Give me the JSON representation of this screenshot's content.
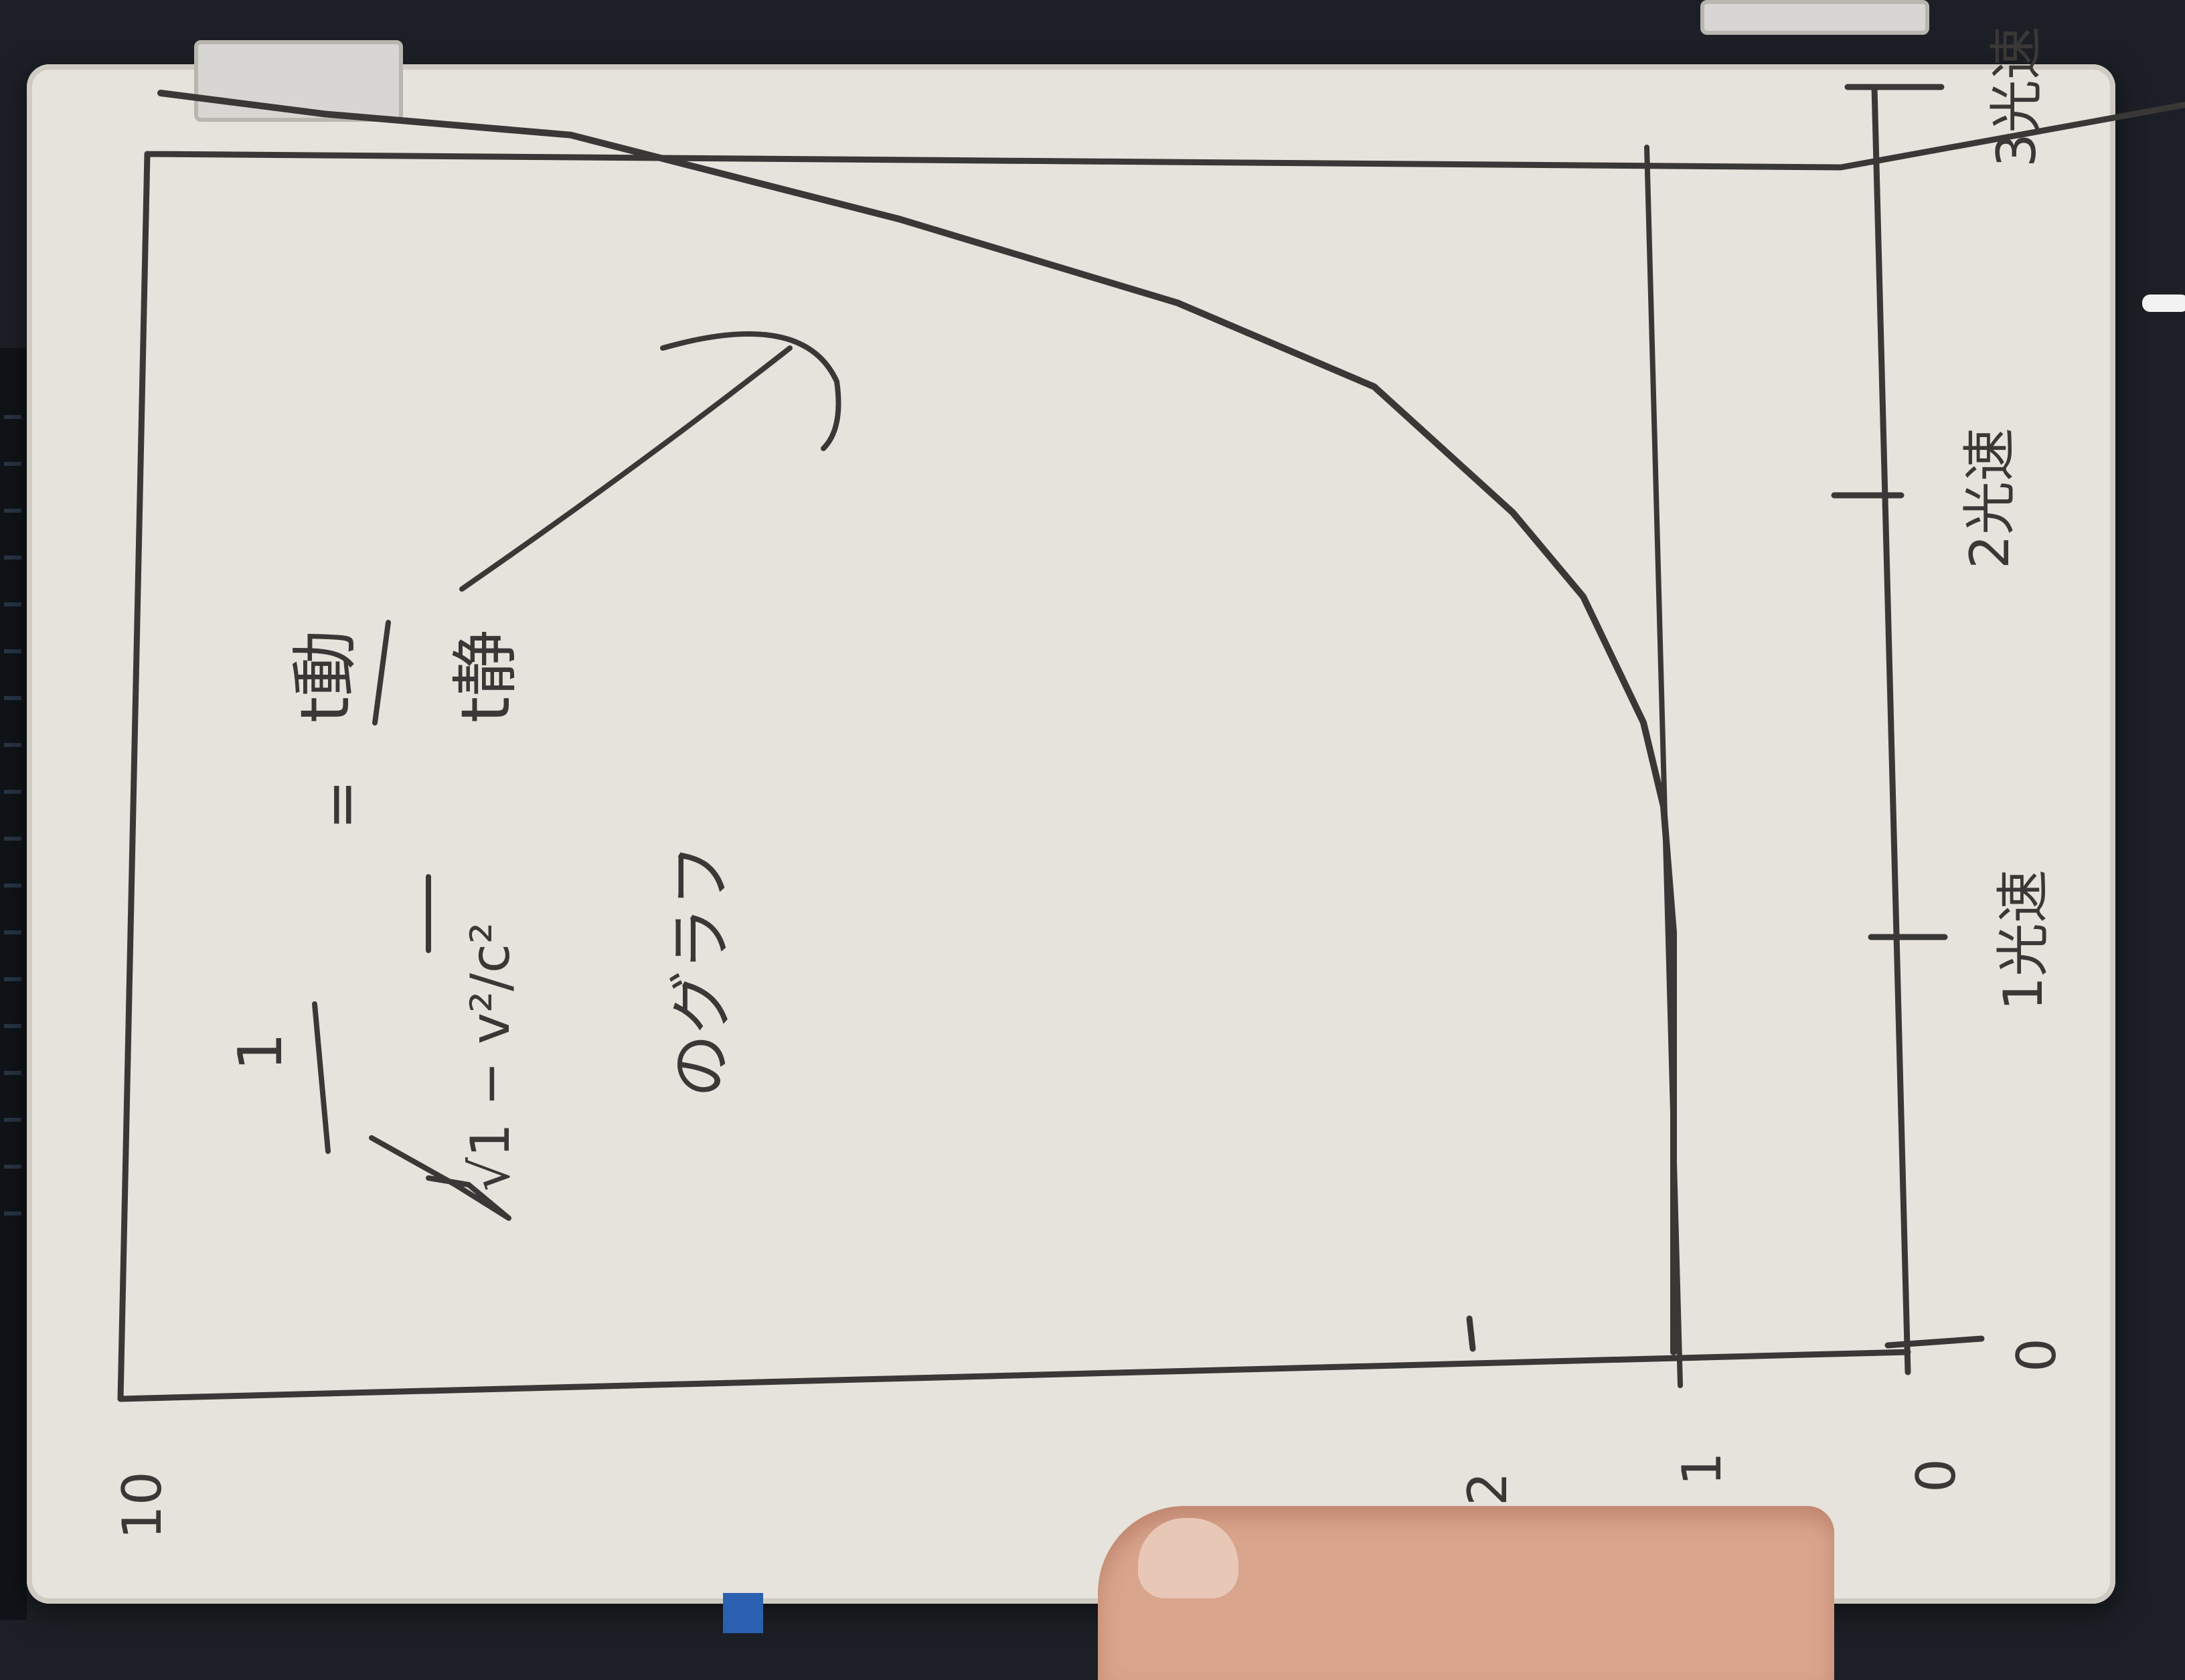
{
  "colors": {
    "ink": "#3a3836",
    "board": "#e6e3dd",
    "background": "#1c2026"
  },
  "chart_data": {
    "type": "line",
    "title": "",
    "x": [
      0,
      1,
      1.3,
      1.5,
      1.8,
      2,
      2.3,
      2.5,
      2.7,
      2.9,
      2.95,
      3
    ],
    "y": [
      1,
      1,
      1.05,
      1.15,
      1.45,
      1.8,
      2.6,
      3.8,
      5.5,
      7.5,
      9,
      10
    ],
    "xticks": [
      "0",
      "1光速",
      "2光速",
      "3光速"
    ],
    "yticks": [
      "0",
      "1",
      "2",
      "10"
    ],
    "x_origin_label": "0",
    "xlabel": "",
    "ylabel": ""
  },
  "annotations": {
    "formula_numerator": "1",
    "formula_denominator": "√1 − v²/c²",
    "equals": "=",
    "t_moving": "t動",
    "t_stationary": "t静",
    "caption": "のグラフ"
  }
}
